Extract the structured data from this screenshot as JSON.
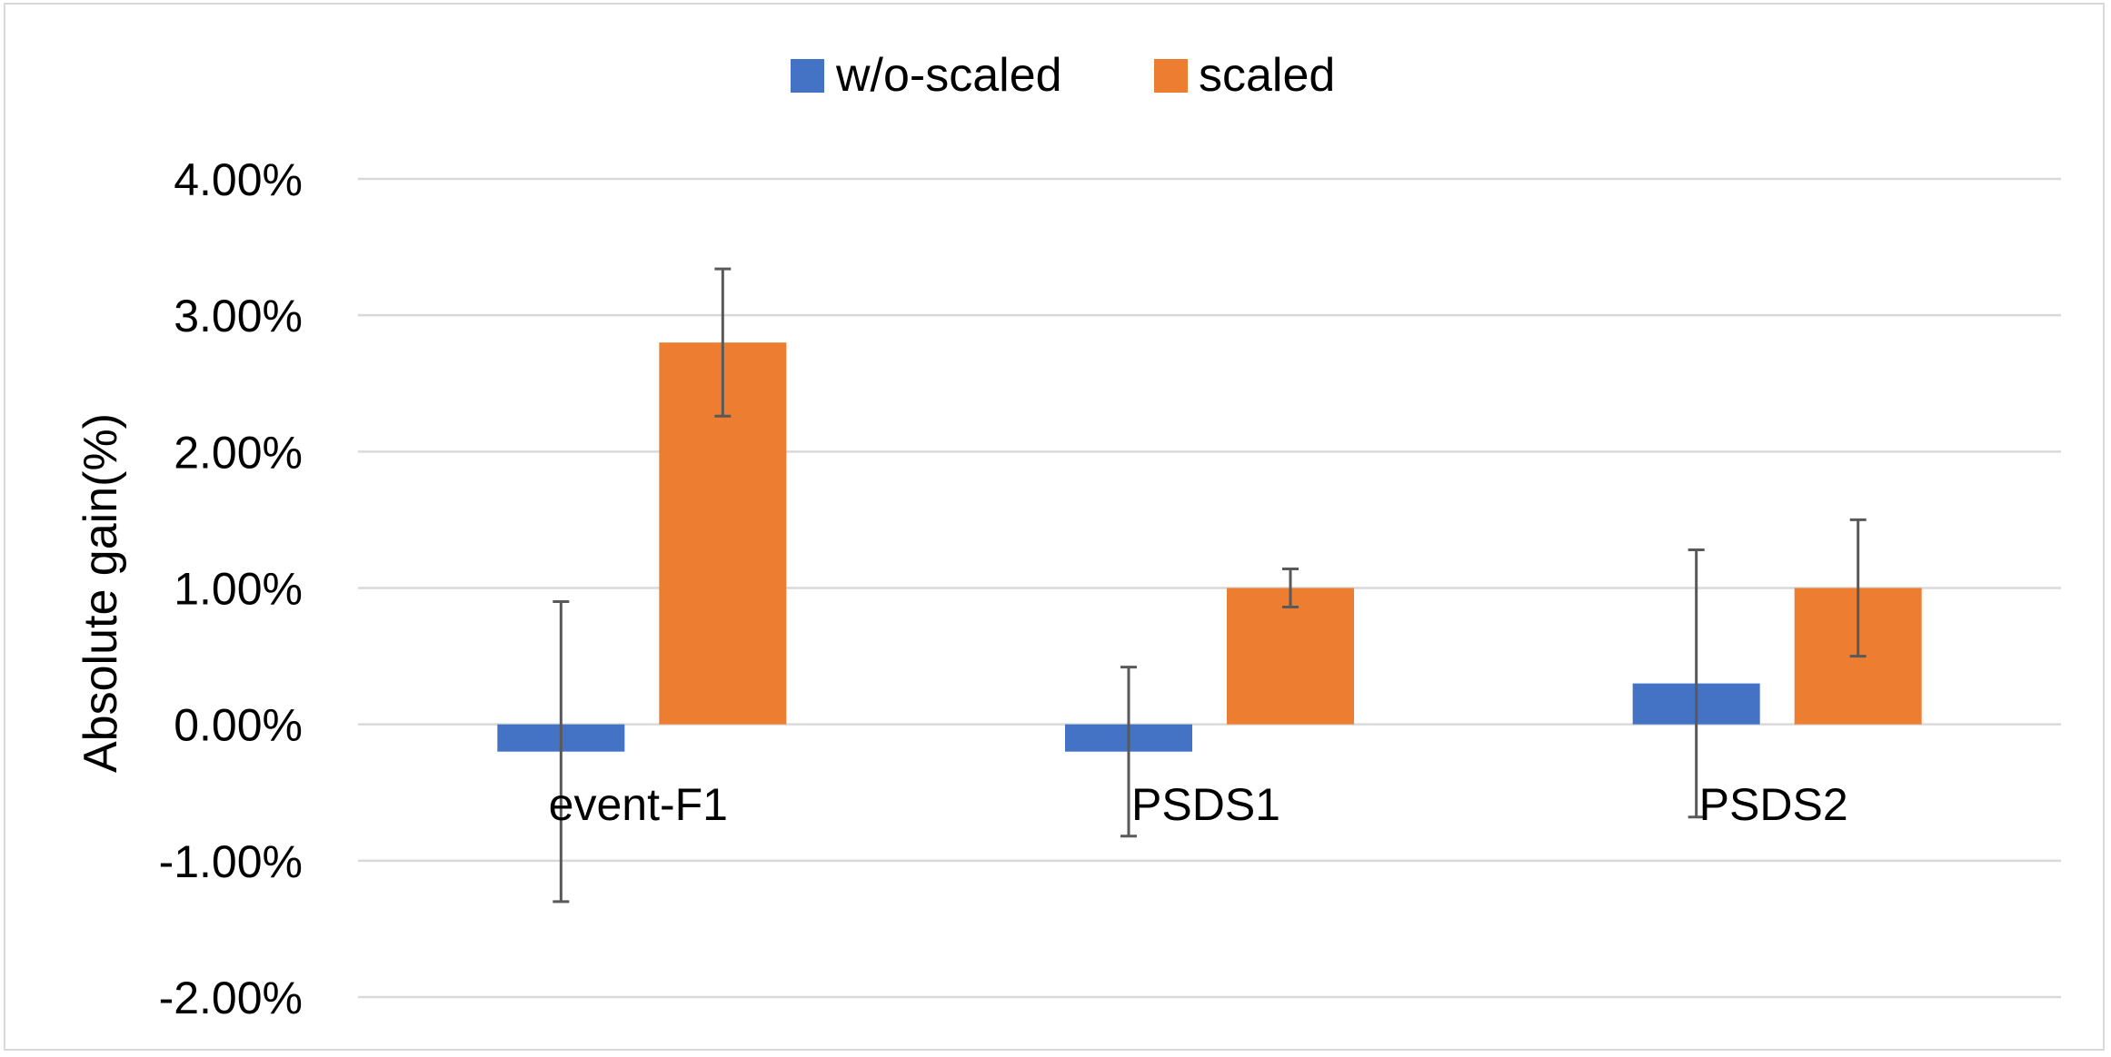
{
  "chart_data": {
    "type": "bar",
    "title": "",
    "xlabel": "",
    "ylabel": "Absolute gain(%)",
    "categories": [
      "event-F1",
      "PSDS1",
      "PSDS2"
    ],
    "series": [
      {
        "name": "w/o-scaled",
        "color": "#4472c4",
        "values": [
          -0.2,
          -0.2,
          0.3
        ],
        "error": [
          1.1,
          0.62,
          0.98
        ]
      },
      {
        "name": "scaled",
        "color": "#ed7d31",
        "values": [
          2.8,
          1.0,
          1.0
        ],
        "error": [
          0.54,
          0.14,
          0.5
        ]
      }
    ],
    "ylim": [
      -2.0,
      4.0
    ],
    "yticks": [
      4.0,
      3.0,
      2.0,
      1.0,
      0.0,
      -1.0,
      -2.0
    ],
    "ytick_labels": [
      "4.00%",
      "3.00%",
      "2.00%",
      "1.00%",
      "0.00%",
      "-1.00%",
      "-2.00%"
    ],
    "grid": true,
    "legend_position": "top-center"
  }
}
